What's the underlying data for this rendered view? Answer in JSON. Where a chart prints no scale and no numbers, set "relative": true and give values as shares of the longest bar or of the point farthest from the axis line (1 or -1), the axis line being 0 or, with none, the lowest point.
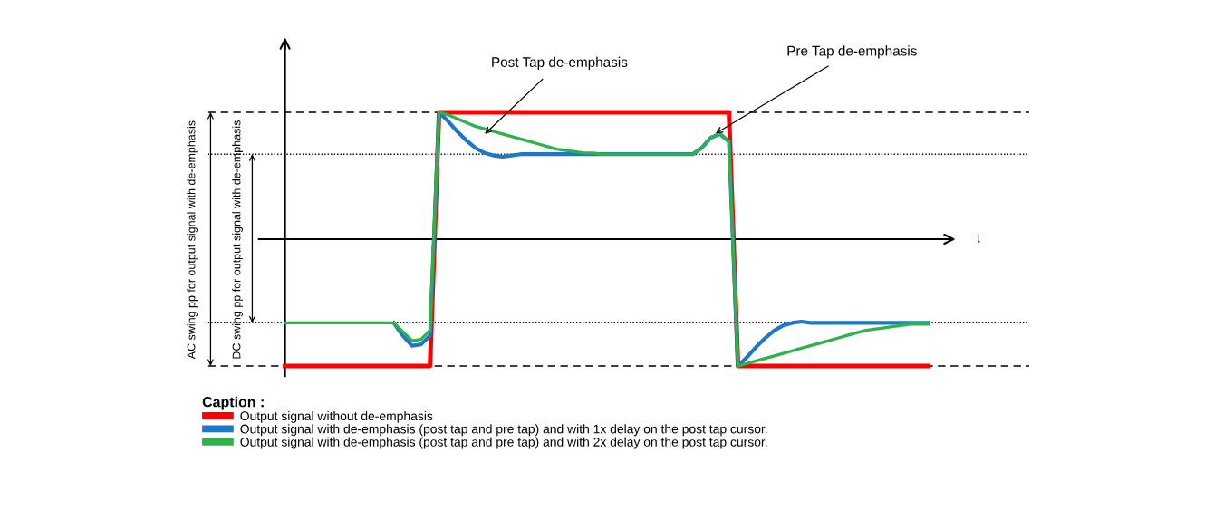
{
  "chart_data": {
    "type": "line",
    "relative": true,
    "xlabel": "t",
    "legend": "bottom left",
    "legend_title": "Caption :",
    "marker": "none",
    "line_style": "solid",
    "categories": [
      null,
      null,
      null,
      null,
      null,
      null,
      null,
      null,
      null,
      null,
      null,
      null,
      null,
      null,
      null,
      null,
      null,
      null,
      null,
      null,
      null,
      null,
      null,
      null,
      null,
      null,
      null,
      null,
      null,
      null,
      null,
      null,
      null,
      null,
      null,
      null,
      null,
      null,
      null,
      null,
      null,
      null,
      null,
      null,
      null,
      null,
      null,
      null,
      null,
      null,
      null,
      null,
      null,
      null,
      null,
      null,
      null,
      null,
      null,
      null,
      null,
      null,
      null,
      null,
      null,
      null,
      null,
      null,
      null,
      null,
      null,
      null
    ],
    "series": [
      {
        "name": "Output signal without de-emphasis",
        "color": "#ff0000",
        "values": [
          -1,
          -1,
          -1,
          -1,
          -1,
          -1,
          -1,
          -1,
          -1,
          -1,
          -1,
          -1,
          -1,
          -1,
          -1,
          -1,
          -1,
          1,
          1,
          1,
          1,
          1,
          1,
          1,
          1,
          1,
          1,
          1,
          1,
          1,
          1,
          1,
          1,
          1,
          1,
          1,
          1,
          1,
          1,
          1,
          1,
          1,
          1,
          1,
          1,
          1,
          1,
          1,
          1,
          1,
          -1,
          -1,
          -1,
          -1,
          -1,
          -1,
          -1,
          -1,
          -1,
          -1,
          -1,
          -1,
          -1,
          -1,
          -1,
          -1,
          -1,
          -1,
          -1,
          -1,
          -1,
          -1
        ]
      },
      {
        "name": "Output signal with de-emphasis (post tap and pre tap) and with 1x delay on the post tap cursor.",
        "color": "#1f77c8",
        "values": [
          null,
          null,
          null,
          null,
          null,
          null,
          null,
          null,
          null,
          null,
          null,
          null,
          -0.66,
          -0.76,
          -0.84,
          -0.83,
          -0.76,
          1,
          0.93,
          0.85,
          0.78,
          0.72,
          0.68,
          0.66,
          0.65,
          0.66,
          0.67,
          0.67,
          0.67,
          0.67,
          0.67,
          0.67,
          0.67,
          0.67,
          0.67,
          0.67,
          0.67,
          0.67,
          0.67,
          0.67,
          0.67,
          0.67,
          0.67,
          0.67,
          0.67,
          0.67,
          0.72,
          0.8,
          0.83,
          0.77,
          -1,
          -0.93,
          -0.85,
          -0.78,
          -0.72,
          -0.68,
          -0.66,
          -0.65,
          -0.66,
          -0.66,
          -0.66,
          -0.66,
          -0.66,
          -0.66,
          -0.66,
          -0.66,
          -0.66,
          -0.66,
          -0.66,
          -0.66,
          -0.66,
          -0.66
        ]
      },
      {
        "name": "Output signal with de-emphasis (post tap and pre tap) and with 2x delay on the post tap cursor.",
        "color": "#2db34a",
        "values": [
          -0.66,
          -0.66,
          -0.66,
          -0.66,
          -0.66,
          -0.66,
          -0.66,
          -0.66,
          -0.66,
          -0.66,
          -0.66,
          -0.66,
          -0.66,
          -0.73,
          -0.8,
          -0.79,
          -0.72,
          1,
          0.98,
          0.95,
          0.92,
          0.89,
          0.87,
          0.85,
          0.83,
          0.81,
          0.79,
          0.77,
          0.75,
          0.73,
          0.71,
          0.7,
          0.69,
          0.68,
          0.68,
          0.67,
          0.67,
          0.67,
          0.67,
          0.67,
          0.67,
          0.67,
          0.67,
          0.67,
          0.67,
          0.67,
          0.72,
          0.8,
          0.83,
          0.77,
          -1,
          -0.98,
          -0.96,
          -0.94,
          -0.92,
          -0.9,
          -0.88,
          -0.86,
          -0.84,
          -0.82,
          -0.8,
          -0.78,
          -0.76,
          -0.74,
          -0.72,
          -0.71,
          -0.7,
          -0.69,
          -0.68,
          -0.67,
          -0.67,
          -0.67
        ]
      }
    ],
    "ref_lines": [
      {
        "axis": "y",
        "value": 1,
        "line_style": "dashed",
        "color": "#000000"
      },
      {
        "axis": "y",
        "value": -1,
        "line_style": "dashed",
        "color": "#000000"
      },
      {
        "axis": "y",
        "value": 0.67,
        "line_style": "dotted",
        "color": "#000000"
      },
      {
        "axis": "y",
        "value": -0.66,
        "line_style": "dotted",
        "color": "#000000"
      }
    ],
    "annotations": [
      "Post Tap de-emphasis",
      "Pre Tap de-emphasis",
      "AC swing pp for output signal with de-emphasis",
      "DC swing pp for output signal with de-emphasis"
    ]
  }
}
